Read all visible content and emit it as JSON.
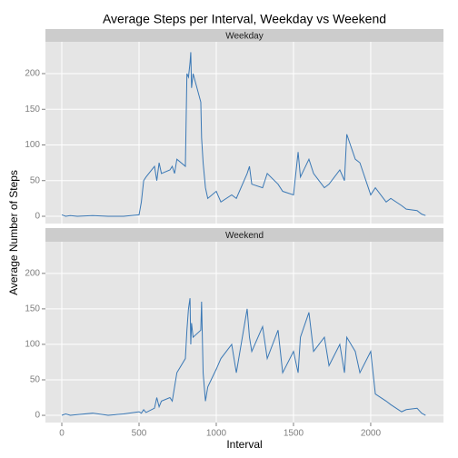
{
  "chart_data": {
    "type": "line",
    "title": "Average Steps per Interval, Weekday vs Weekend",
    "xlabel": "Interval",
    "ylabel": "Average Number of Steps",
    "x": [
      0,
      25,
      55,
      100,
      200,
      300,
      400,
      500,
      515,
      530,
      545,
      600,
      615,
      630,
      645,
      700,
      715,
      730,
      745,
      800,
      810,
      820,
      830,
      835,
      840,
      850,
      900,
      905,
      915,
      930,
      945,
      1000,
      1030,
      1100,
      1130,
      1200,
      1215,
      1230,
      1300,
      1330,
      1400,
      1430,
      1500,
      1530,
      1545,
      1600,
      1630,
      1700,
      1730,
      1800,
      1830,
      1845,
      1900,
      1930,
      2000,
      2030,
      2100,
      2130,
      2200,
      2230,
      2300,
      2330,
      2355
    ],
    "series": [
      {
        "name": "Weekday",
        "color": "#3a78b5",
        "values": [
          2,
          0,
          1,
          0,
          1,
          0,
          0,
          2,
          20,
          50,
          55,
          70,
          50,
          75,
          60,
          65,
          70,
          60,
          80,
          70,
          200,
          195,
          215,
          230,
          180,
          200,
          160,
          110,
          75,
          40,
          25,
          35,
          20,
          30,
          25,
          60,
          70,
          45,
          40,
          60,
          45,
          35,
          30,
          90,
          55,
          80,
          60,
          40,
          45,
          65,
          50,
          115,
          80,
          75,
          30,
          40,
          20,
          25,
          15,
          10,
          8,
          3,
          1
        ]
      },
      {
        "name": "Weekend",
        "color": "#3a78b5",
        "values": [
          0,
          2,
          0,
          1,
          3,
          0,
          2,
          5,
          3,
          8,
          4,
          10,
          25,
          12,
          20,
          25,
          20,
          40,
          60,
          80,
          120,
          150,
          165,
          100,
          130,
          110,
          120,
          160,
          60,
          20,
          40,
          65,
          80,
          100,
          60,
          150,
          110,
          90,
          125,
          80,
          120,
          60,
          90,
          60,
          110,
          145,
          90,
          110,
          70,
          100,
          60,
          110,
          90,
          60,
          90,
          30,
          20,
          15,
          5,
          8,
          10,
          3,
          0
        ]
      }
    ],
    "xlim": [
      -106,
      2471
    ],
    "ylim": [
      -10.2,
      244.6
    ],
    "xticks": [
      0,
      500,
      1000,
      1500,
      2000
    ],
    "yticks": [
      0,
      50,
      100,
      150,
      200
    ],
    "grid": true
  }
}
